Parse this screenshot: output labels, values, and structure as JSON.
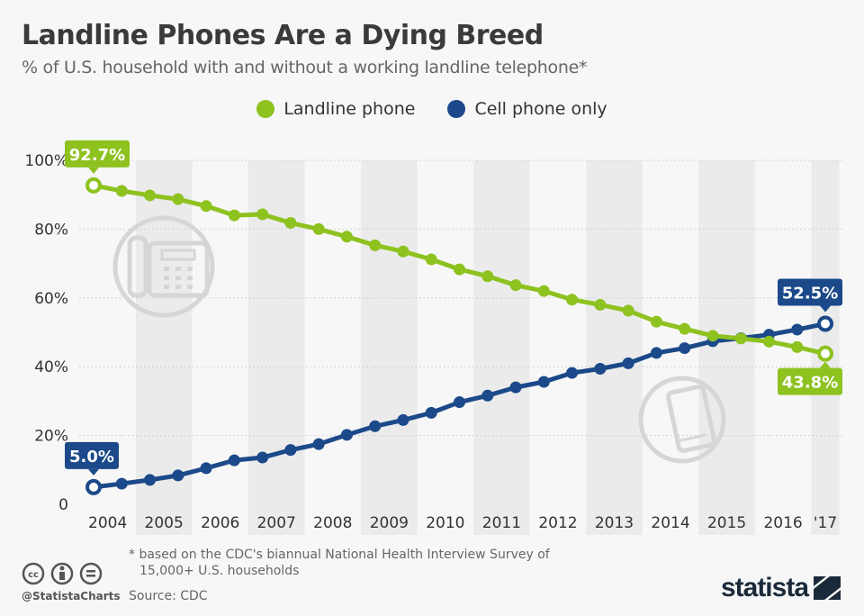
{
  "title": "Landline Phones Are a Dying Breed",
  "subtitle": "% of U.S. household with and without a working landline telephone*",
  "footnote_line1": "* based on the CDC's biannual National Health Interview Survey of",
  "footnote_line2": "15,000+ U.S. households",
  "source": "Source: CDC",
  "handle": "@StatistaCharts",
  "brand": "statista",
  "colors": {
    "landline": "#8dc21f",
    "cell": "#1b4989",
    "band": "#ebebeb",
    "background": "#f7f7f7"
  },
  "icons": [
    "landline-phone-icon",
    "smartphone-icon",
    "cc-license-icon"
  ],
  "chart_data": {
    "type": "line",
    "title": "Landline Phones Are a Dying Breed",
    "ylim": [
      0,
      100
    ],
    "yticks": [
      "0",
      "20%",
      "40%",
      "60%",
      "80%",
      "100%"
    ],
    "ytick_values": [
      0,
      20,
      40,
      60,
      80,
      100
    ],
    "categories": [
      "2004",
      "2005",
      "2006",
      "2007",
      "2008",
      "2009",
      "2010",
      "2011",
      "2012",
      "2013",
      "2014",
      "2015",
      "2016",
      "'17"
    ],
    "x": [
      "2004 H1",
      "2004 H2",
      "2005 H1",
      "2005 H2",
      "2006 H1",
      "2006 H2",
      "2007 H1",
      "2007 H2",
      "2008 H1",
      "2008 H2",
      "2009 H1",
      "2009 H2",
      "2010 H1",
      "2010 H2",
      "2011 H1",
      "2011 H2",
      "2012 H1",
      "2012 H2",
      "2013 H1",
      "2013 H2",
      "2014 H1",
      "2014 H2",
      "2015 H1",
      "2015 H2",
      "2016 H1",
      "2016 H2",
      "2017 H1"
    ],
    "grid": true,
    "legend_position": "top-center",
    "series": [
      {
        "name": "Landline phone",
        "values": [
          92.7,
          91.1,
          89.8,
          88.7,
          86.7,
          84.0,
          84.3,
          81.8,
          80.0,
          77.8,
          75.3,
          73.5,
          71.2,
          68.3,
          66.3,
          63.7,
          62.0,
          59.5,
          58.0,
          56.3,
          53.1,
          51.0,
          49.0,
          48.2,
          47.3,
          45.7,
          43.8
        ],
        "labels": {
          "first": "92.7%",
          "last": "43.8%"
        }
      },
      {
        "name": "Cell phone only",
        "values": [
          5.0,
          6.0,
          7.1,
          8.4,
          10.5,
          12.8,
          13.6,
          15.8,
          17.5,
          20.2,
          22.7,
          24.5,
          26.6,
          29.7,
          31.6,
          34.0,
          35.6,
          38.2,
          39.4,
          41.0,
          44.0,
          45.4,
          47.4,
          48.3,
          49.3,
          50.8,
          52.5
        ],
        "labels": {
          "first": "5.0%",
          "last": "52.5%"
        }
      }
    ]
  }
}
